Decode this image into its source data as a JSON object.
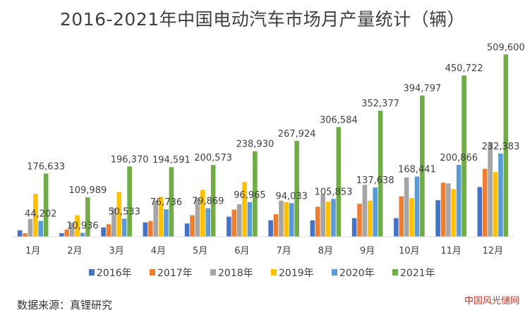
{
  "title": "2016-2021年中国电动汽车市场月产量统计（辆）",
  "source": "数据来源：真锂研究",
  "watermark": "中国风光储网",
  "chart_data": {
    "type": "bar",
    "title": "2016-2021年中国电动汽车市场月产量统计（辆）",
    "categories": [
      "1月",
      "2月",
      "3月",
      "4月",
      "5月",
      "6月",
      "7月",
      "8月",
      "9月",
      "10月",
      "11月",
      "12月"
    ],
    "ylim": [
      0,
      520000
    ],
    "grid": false,
    "legend_position": "bottom",
    "series": [
      {
        "name": "2016年",
        "color": "#4472c4",
        "values": [
          18000,
          10000,
          26000,
          40000,
          37000,
          56000,
          46000,
          46000,
          52000,
          52000,
          102000,
          139000
        ]
      },
      {
        "name": "2017年",
        "color": "#ed7d31",
        "values": [
          10000,
          20000,
          35000,
          44000,
          60000,
          76000,
          63000,
          84000,
          92000,
          113000,
          151000,
          190000
        ]
      },
      {
        "name": "2018年",
        "color": "#a5a5a5",
        "values": [
          50000,
          40000,
          80000,
          101000,
          108000,
          91000,
          101000,
          118000,
          145000,
          166000,
          149000,
          264000
        ]
      },
      {
        "name": "2019年",
        "color": "#ffc000",
        "values": [
          120000,
          60000,
          125000,
          112000,
          131000,
          153000,
          97000,
          98000,
          101000,
          108000,
          133000,
          181000
        ]
      },
      {
        "name": "2020年",
        "color": "#5b9bd5",
        "values": [
          44202,
          10936,
          50533,
          76736,
          79869,
          96965,
          94033,
          105853,
          137638,
          168441,
          200866,
          232383
        ]
      },
      {
        "name": "2021年",
        "color": "#70ad47",
        "values": [
          176633,
          109989,
          196370,
          194591,
          200573,
          238930,
          267924,
          306584,
          352377,
          394797,
          450722,
          509600
        ]
      }
    ],
    "data_labels": {
      "2020年": [
        "44,202",
        "10,936",
        "50,533",
        "76,736",
        "79,869",
        "96,965",
        "94,033",
        "105,853",
        "137,638",
        "168,441",
        "200,866",
        "232,383"
      ],
      "2021年": [
        "176,633",
        "109,989",
        "196,370",
        "194,591",
        "200,573",
        "238,930",
        "267,924",
        "306,584",
        "352,377",
        "394,797",
        "450,722",
        "509,600"
      ]
    }
  }
}
